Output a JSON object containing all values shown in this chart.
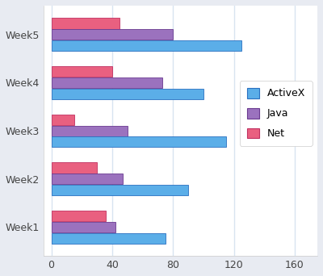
{
  "weeks": [
    "Week1",
    "Week2",
    "Week3",
    "Week4",
    "Week5"
  ],
  "activex": [
    75,
    90,
    115,
    100,
    125
  ],
  "java": [
    42,
    47,
    50,
    73,
    80
  ],
  "net": [
    36,
    30,
    15,
    40,
    45
  ],
  "activex_color": "#5BAEE8",
  "java_color": "#9B72BE",
  "net_color": "#E96080",
  "background_color": "#FFFFFF",
  "plot_bg_color": "#FFFFFF",
  "grid_color": "#D8E4F0",
  "xlim": [
    -5,
    175
  ],
  "xticks": [
    0,
    40,
    80,
    120,
    160
  ],
  "bar_height": 0.22,
  "bar_gap": 0.23,
  "legend_labels": [
    "ActiveX",
    "Java",
    "Net"
  ],
  "outer_bg": "#E8EBF2"
}
